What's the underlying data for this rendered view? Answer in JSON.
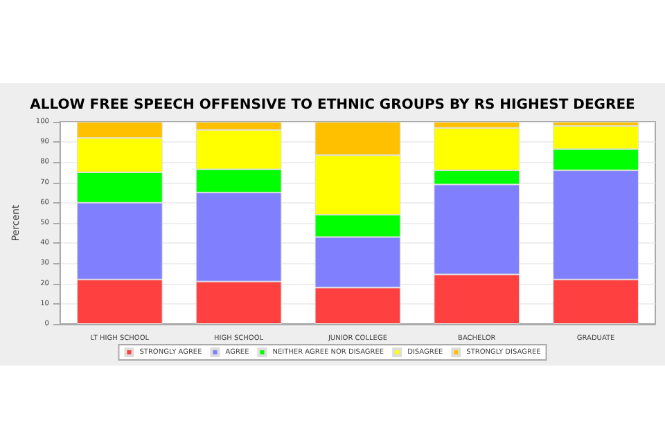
{
  "chart_data": {
    "type": "bar",
    "stacked": true,
    "title": "ALLOW FREE SPEECH OFFENSIVE TO ETHNIC GROUPS BY RS HIGHEST DEGREE",
    "ylabel": "Percent",
    "categories": [
      "LT HIGH SCHOOL",
      "HIGH SCHOOL",
      "JUNIOR COLLEGE",
      "BACHELOR",
      "GRADUATE"
    ],
    "series": [
      {
        "name": "STRONGLY AGREE",
        "color": "#ff4040",
        "values": [
          22,
          21,
          18,
          24.5,
          22
        ]
      },
      {
        "name": "AGREE",
        "color": "#8080ff",
        "values": [
          38,
          44,
          25,
          44.5,
          54
        ]
      },
      {
        "name": "NEITHER AGREE NOR DISAGREE",
        "color": "#00ff00",
        "values": [
          15,
          11.5,
          11,
          7,
          10.5
        ]
      },
      {
        "name": "DISAGREE",
        "color": "#ffff00",
        "values": [
          17,
          19.5,
          29.5,
          21,
          11.5
        ]
      },
      {
        "name": "STRONGLY DISAGREE",
        "color": "#ffc000",
        "values": [
          8,
          4,
          16.5,
          3,
          2
        ]
      }
    ],
    "ylim": [
      0,
      100
    ],
    "yticks": [
      0,
      10,
      20,
      30,
      40,
      50,
      60,
      70,
      80,
      90,
      100
    ],
    "grid": "y",
    "legend": "bottom"
  }
}
